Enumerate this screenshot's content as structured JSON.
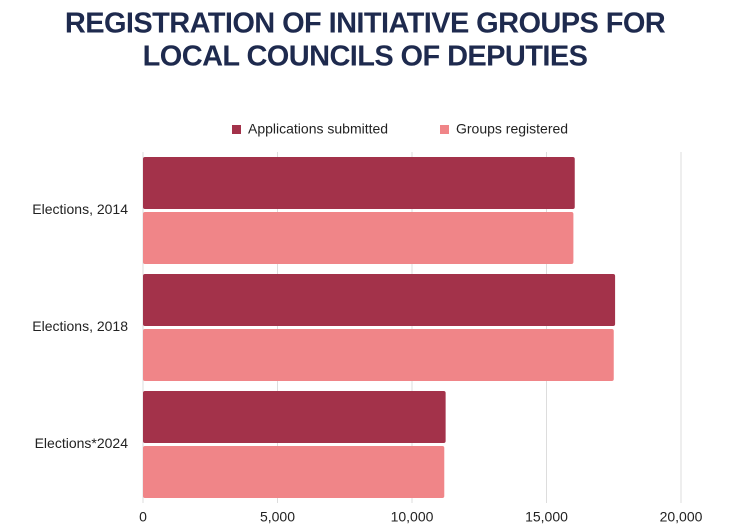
{
  "chart_data": {
    "type": "hbar",
    "title": [
      "REGISTRATION OF INITIATIVE GROUPS FOR",
      "LOCAL COUNCILS OF DEPUTIES"
    ],
    "categories": [
      "Elections, 2014",
      "Elections, 2018",
      "Elections*2024"
    ],
    "series": [
      {
        "name": "Applications submitted",
        "color": "#a3324a",
        "values": [
          16050,
          17550,
          11250
        ]
      },
      {
        "name": "Groups registered",
        "color": "#f08588",
        "values": [
          16000,
          17500,
          11200
        ]
      }
    ],
    "xlim": [
      0,
      20000
    ],
    "xticks": [
      0,
      {
        "value": 5000,
        "label": "5,000"
      },
      {
        "value": 10000,
        "label": "10,000"
      },
      {
        "value": 15000,
        "label": "15,000"
      },
      {
        "value": 20000,
        "label": "20,000"
      }
    ],
    "grid": true,
    "legend": "top"
  }
}
